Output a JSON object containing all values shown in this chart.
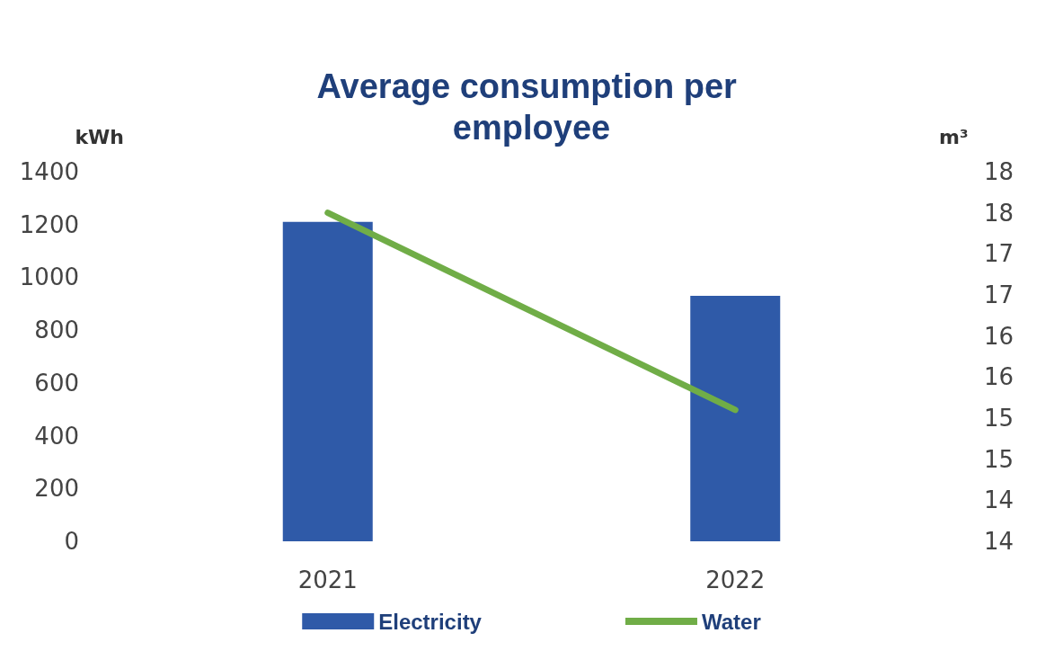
{
  "chart_data": {
    "type": "bar",
    "title": "Average consumption per employee",
    "ylabel": "kWh",
    "y2label": "m³",
    "categories": [
      "2021",
      "2022"
    ],
    "series": [
      {
        "name": "Electricity",
        "color": "#2f5aa8",
        "values": [
          1210,
          930
        ]
      },
      {
        "name": "Water",
        "type": "line",
        "axis": "y2",
        "color": "#70ad47",
        "values": [
          18.0,
          15.6
        ],
        "marker": "none"
      }
    ],
    "ylim": [
      0,
      1400
    ],
    "yticks": [
      0,
      200,
      400,
      600,
      800,
      1000,
      1200,
      1400
    ],
    "y2lim": [
      14,
      18.5
    ],
    "y2ticks": [
      {
        "value": 14,
        "label": "14"
      },
      {
        "value": 14.5,
        "label": "14"
      },
      {
        "value": 15,
        "label": "15"
      },
      {
        "value": 15.5,
        "label": "15"
      },
      {
        "value": 16,
        "label": "16"
      },
      {
        "value": 16.5,
        "label": "16"
      },
      {
        "value": 17,
        "label": "17"
      },
      {
        "value": 17.5,
        "label": "17"
      },
      {
        "value": 18,
        "label": "18"
      },
      {
        "value": 18.5,
        "label": "18"
      }
    ],
    "grid": false,
    "legend": "bottom"
  }
}
